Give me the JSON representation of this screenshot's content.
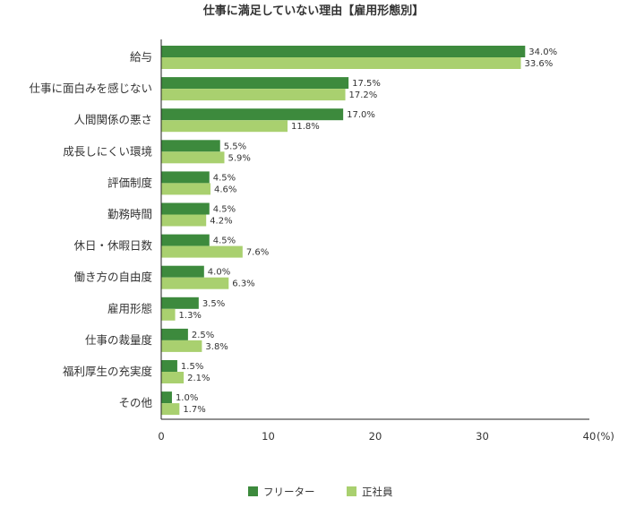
{
  "chart_data": {
    "type": "bar",
    "orientation": "horizontal",
    "title": "仕事に満足していない理由【雇用形態別】",
    "unit": "(%)",
    "categories": [
      "給与",
      "仕事に面白みを感じない",
      "人間関係の悪さ",
      "成長しにくい環境",
      "評価制度",
      "勤務時間",
      "休日・休暇日数",
      "働き方の自由度",
      "雇用形態",
      "仕事の裁量度",
      "福利厚生の充実度",
      "その他"
    ],
    "series": [
      {
        "name": "フリーター",
        "color": "#3d8a3d",
        "values": [
          34.0,
          17.5,
          17.0,
          5.5,
          4.5,
          4.5,
          4.5,
          4.0,
          3.5,
          2.5,
          1.5,
          1.0
        ]
      },
      {
        "name": "正社員",
        "color": "#a9d06f",
        "values": [
          33.6,
          17.2,
          11.8,
          5.9,
          4.6,
          4.2,
          7.6,
          6.3,
          1.3,
          3.8,
          2.1,
          1.7
        ]
      }
    ],
    "xlim": [
      0,
      40
    ],
    "xticks": [
      0,
      10,
      20,
      30,
      40
    ],
    "grid": false,
    "legend": "bottom-center"
  }
}
